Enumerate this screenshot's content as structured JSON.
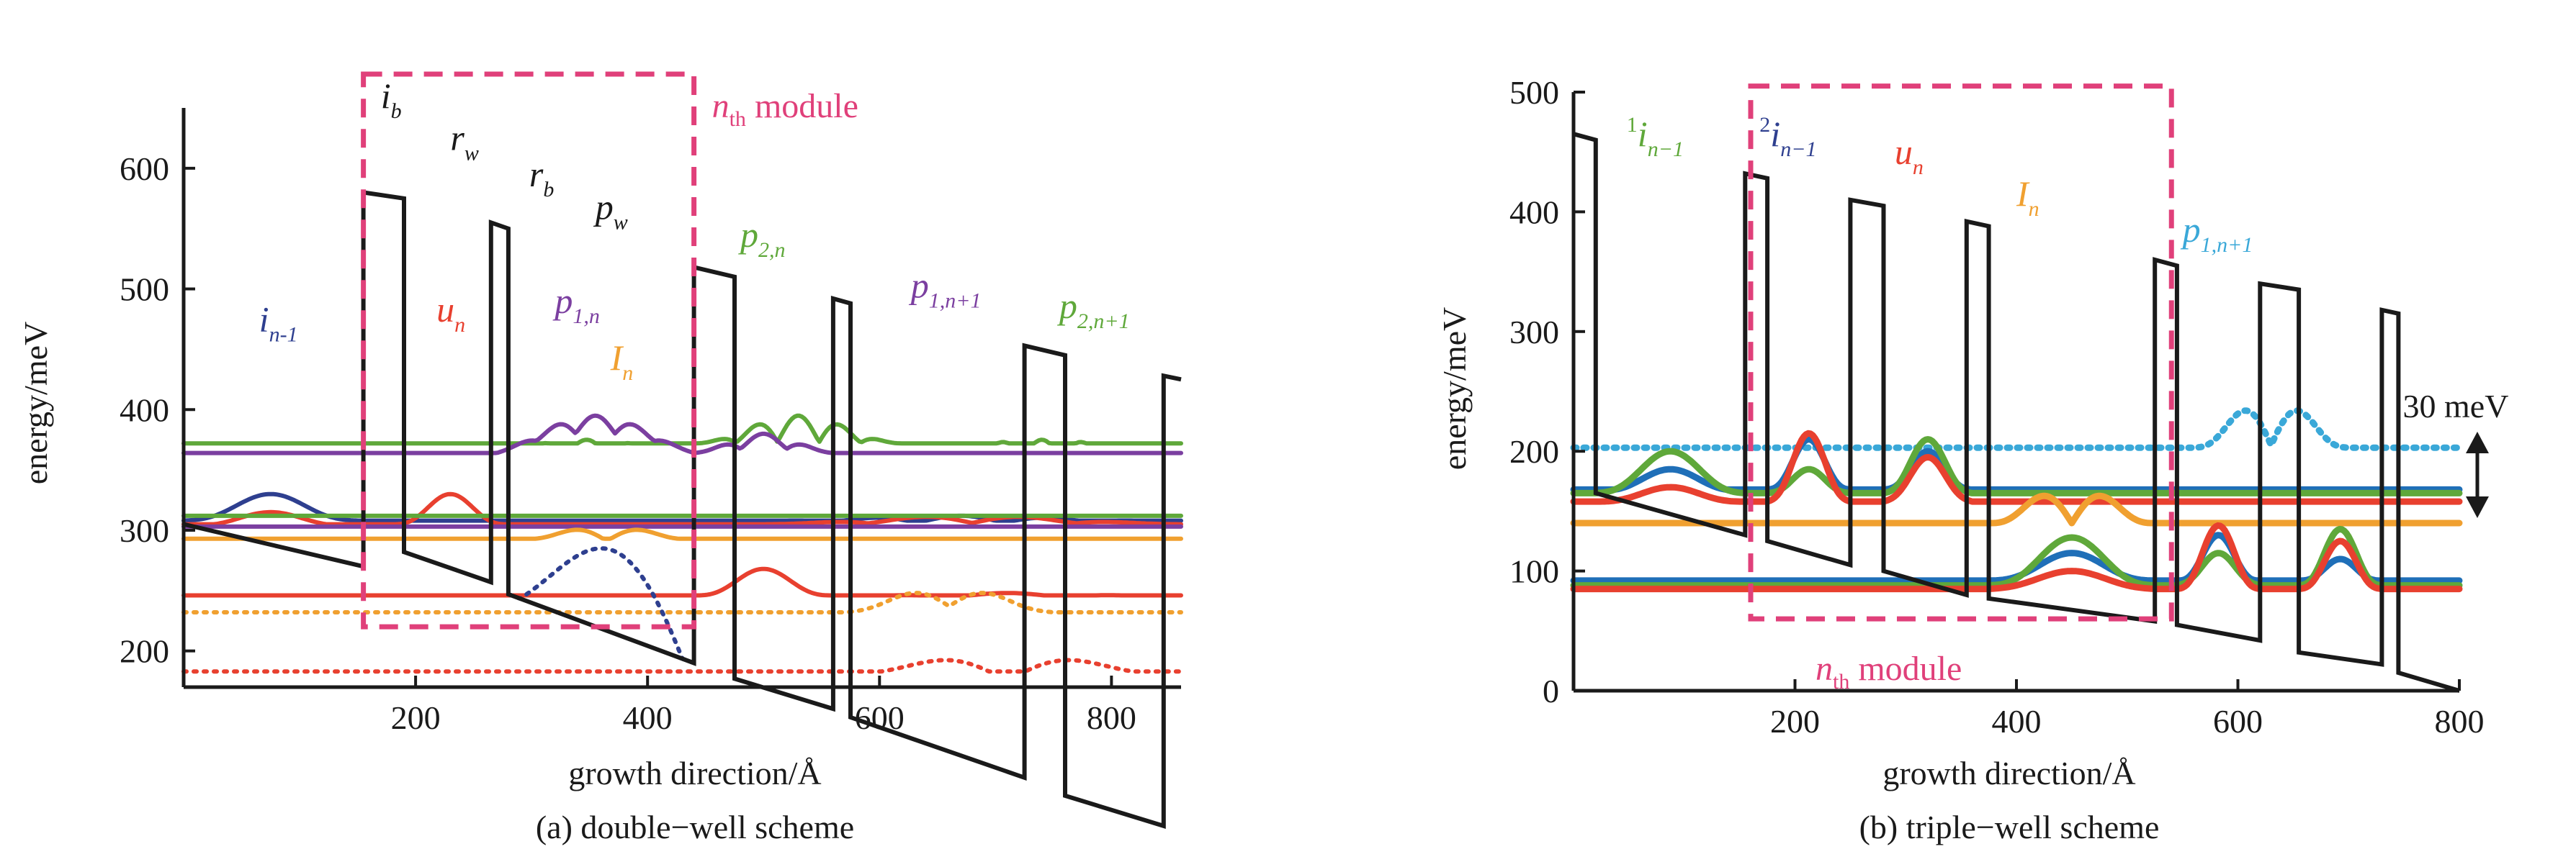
{
  "colors": {
    "black": "#1a1a1a",
    "red": "#e8402f",
    "green": "#5fa83a",
    "purple": "#7b3fa0",
    "orange": "#f0a030",
    "navy": "#2e3f8f",
    "blue": "#1f6fb8",
    "lightblue": "#3aa8d8",
    "magenta": "#e0407a"
  },
  "chart_data": [
    {
      "type": "line",
      "caption": "(a) double−well scheme",
      "xlabel": "growth direction/Å",
      "ylabel": "energy/meV",
      "xlim": [
        0,
        860
      ],
      "ylim": [
        170,
        650
      ],
      "xticks": [
        200,
        400,
        600,
        800
      ],
      "yticks": [
        200,
        300,
        400,
        500,
        600
      ],
      "module_label": {
        "prefix": "n",
        "sub": "th",
        "suffix": " module"
      },
      "module_box": {
        "x": [
          155,
          440
        ],
        "y": [
          220,
          678
        ]
      },
      "band_profile": [
        [
          0,
          305
        ],
        [
          155,
          270
        ],
        [
          155,
          580
        ],
        [
          190,
          575
        ],
        [
          190,
          282
        ],
        [
          265,
          257
        ],
        [
          265,
          555
        ],
        [
          280,
          550
        ],
        [
          280,
          247
        ],
        [
          440,
          190
        ],
        [
          440,
          518
        ],
        [
          475,
          510
        ],
        [
          475,
          177
        ],
        [
          560,
          152
        ],
        [
          560,
          492
        ],
        [
          575,
          488
        ],
        [
          575,
          145
        ],
        [
          725,
          95
        ],
        [
          725,
          453
        ],
        [
          760,
          445
        ],
        [
          760,
          80
        ],
        [
          845,
          55
        ],
        [
          845,
          428
        ],
        [
          860,
          425
        ]
      ],
      "layer_labels": [
        {
          "base": "i",
          "sub": "b",
          "x": 170,
          "y": 650,
          "color": "black"
        },
        {
          "base": "r",
          "sub": "w",
          "x": 230,
          "y": 615,
          "color": "black"
        },
        {
          "base": "r",
          "sub": "b",
          "x": 298,
          "y": 585,
          "color": "black"
        },
        {
          "base": "p",
          "sub": "w",
          "x": 355,
          "y": 558,
          "color": "black"
        }
      ],
      "state_labels": [
        {
          "base": "i",
          "sub": "n-1",
          "x": 65,
          "y": 465,
          "color": "navy"
        },
        {
          "base": "u",
          "sub": "n",
          "x": 218,
          "y": 473,
          "color": "red"
        },
        {
          "base": "p",
          "sub": "1,n",
          "x": 320,
          "y": 480,
          "color": "purple"
        },
        {
          "base": "I",
          "sub": "n",
          "x": 368,
          "y": 433,
          "color": "orange"
        },
        {
          "base": "p",
          "sub": "2,n",
          "x": 480,
          "y": 535,
          "color": "green"
        },
        {
          "base": "p",
          "sub": "1,n+1",
          "x": 627,
          "y": 493,
          "color": "purple"
        },
        {
          "base": "p",
          "sub": "2,n+1",
          "x": 755,
          "y": 476,
          "color": "green"
        }
      ],
      "series": [
        {
          "label": "green upper level",
          "color": "green",
          "style": "solid",
          "points": [
            [
              0,
              372
            ],
            [
              860,
              372
            ]
          ],
          "wiggles": [
            [
              255,
              440,
              375,
              15,
              5
            ],
            [
              440,
              620,
              395,
              22,
              5
            ],
            [
              620,
              860,
              375,
              18,
              7
            ]
          ]
        },
        {
          "label": "purple upper level",
          "color": "purple",
          "style": "solid",
          "points": [
            [
              0,
              364
            ],
            [
              860,
              364
            ]
          ],
          "wiggles": [
            [
              270,
              440,
              395,
              14,
              5
            ],
            [
              440,
              560,
              380,
              12,
              3
            ],
            [
              580,
              860,
              325,
              18,
              8
            ]
          ]
        },
        {
          "label": "navy ground",
          "color": "navy",
          "style": "solid",
          "points": [
            [
              0,
              308
            ],
            [
              860,
              308
            ]
          ],
          "wiggles": [
            [
              0,
              150,
              330,
              20,
              1
            ],
            [
              480,
              860,
              312,
              6,
              5
            ]
          ]
        },
        {
          "label": "red upper-lower",
          "color": "red",
          "style": "solid",
          "points": [
            [
              0,
              305
            ],
            [
              860,
              305
            ]
          ],
          "wiggles": [
            [
              0,
              150,
              315,
              14,
              1
            ],
            [
              180,
              280,
              330,
              25,
              1
            ],
            [
              500,
              860,
              312,
              6,
              4
            ]
          ]
        },
        {
          "label": "green middle",
          "color": "green",
          "style": "solid",
          "points": [
            [
              0,
              312
            ],
            [
              860,
              312
            ]
          ]
        },
        {
          "label": "purple middle",
          "color": "purple",
          "style": "solid",
          "points": [
            [
              0,
              303
            ],
            [
              860,
              303
            ]
          ]
        },
        {
          "label": "orange",
          "color": "orange",
          "style": "solid",
          "points": [
            [
              0,
              293
            ],
            [
              860,
              293
            ]
          ],
          "wiggles": [
            [
              290,
              440,
              305,
              14,
              2
            ]
          ]
        },
        {
          "label": "red lower",
          "color": "red",
          "style": "solid",
          "points": [
            [
              0,
              246
            ],
            [
              860,
              246
            ]
          ],
          "wiggles": [
            [
              440,
              560,
              268,
              22,
              1
            ],
            [
              560,
              860,
              248,
              4,
              3
            ]
          ]
        },
        {
          "label": "orange dotted",
          "color": "orange",
          "style": "dotted",
          "points": [
            [
              0,
              232
            ],
            [
              860,
              232
            ]
          ],
          "wiggles": [
            [
              570,
              750,
              255,
              18,
              2
            ]
          ]
        },
        {
          "label": "navy dotted",
          "color": "navy",
          "style": "dotted",
          "points": [
            [
              280,
              247
            ],
            [
              440,
              190
            ]
          ],
          "wiggles": [
            [
              290,
              430,
              285,
              0,
              1
            ]
          ]
        },
        {
          "label": "red dotted",
          "color": "red",
          "style": "dotted",
          "points": [
            [
              0,
              183
            ],
            [
              860,
              183
            ]
          ],
          "wiggles": [
            [
              560,
              860,
              200,
              25,
              2
            ]
          ]
        }
      ]
    },
    {
      "type": "line",
      "caption": "(b) triple−well scheme",
      "xlabel": "growth direction/Å",
      "ylabel": "energy/meV",
      "xlim": [
        0,
        800
      ],
      "ylim": [
        0,
        500
      ],
      "xticks": [
        200,
        400,
        600,
        800
      ],
      "yticks": [
        0,
        100,
        200,
        300,
        400,
        500
      ],
      "module_label": {
        "prefix": "n",
        "sub": "th",
        "suffix": " module"
      },
      "module_box": {
        "x": [
          160,
          540
        ],
        "y": [
          60,
          505
        ]
      },
      "annotation": "30 meV",
      "band_profile": [
        [
          0,
          465
        ],
        [
          20,
          460
        ],
        [
          20,
          165
        ],
        [
          155,
          130
        ],
        [
          155,
          432
        ],
        [
          175,
          428
        ],
        [
          175,
          125
        ],
        [
          250,
          105
        ],
        [
          250,
          410
        ],
        [
          280,
          405
        ],
        [
          280,
          100
        ],
        [
          355,
          80
        ],
        [
          355,
          392
        ],
        [
          375,
          388
        ],
        [
          375,
          77
        ],
        [
          525,
          58
        ],
        [
          525,
          360
        ],
        [
          545,
          355
        ],
        [
          545,
          55
        ],
        [
          620,
          42
        ],
        [
          620,
          340
        ],
        [
          655,
          335
        ],
        [
          655,
          32
        ],
        [
          730,
          22
        ],
        [
          730,
          318
        ],
        [
          745,
          315
        ],
        [
          745,
          15
        ],
        [
          800,
          0
        ]
      ],
      "state_labels": [
        {
          "pre": "1",
          "base": "i",
          "sub": "n−1",
          "x": 48,
          "y": 455,
          "color": "green"
        },
        {
          "pre": "2",
          "base": "i",
          "sub": "n−1",
          "x": 168,
          "y": 455,
          "color": "navy"
        },
        {
          "base": "u",
          "sub": "n",
          "x": 290,
          "y": 440,
          "color": "red"
        },
        {
          "base": "I",
          "sub": "n",
          "x": 400,
          "y": 405,
          "color": "orange"
        },
        {
          "base": "p",
          "sub": "1,n+1",
          "x": 550,
          "y": 375,
          "color": "lightblue"
        }
      ],
      "series": [
        {
          "label": "light blue dotted",
          "color": "lightblue",
          "style": "dotted",
          "points": [
            [
              0,
              203
            ],
            [
              800,
              203
            ]
          ],
          "wiggles": [
            [
              560,
              700,
              250,
              45,
              2
            ]
          ]
        },
        {
          "label": "blue upper",
          "color": "blue",
          "style": "solid",
          "points": [
            [
              0,
              168
            ],
            [
              800,
              168
            ]
          ],
          "wiggles": [
            [
              20,
              155,
              185,
              20,
              1
            ],
            [
              175,
              250,
              210,
              40,
              1
            ],
            [
              280,
              360,
              200,
              30,
              1
            ]
          ]
        },
        {
          "label": "green upper",
          "color": "green",
          "style": "solid",
          "points": [
            [
              0,
              165
            ],
            [
              800,
              165
            ]
          ],
          "wiggles": [
            [
              20,
              155,
              200,
              32,
              1
            ],
            [
              175,
              250,
              185,
              18,
              1
            ],
            [
              280,
              360,
              210,
              40,
              1
            ]
          ]
        },
        {
          "label": "red upper",
          "color": "red",
          "style": "solid",
          "points": [
            [
              0,
              158
            ],
            [
              800,
              158
            ]
          ],
          "wiggles": [
            [
              20,
              155,
              170,
              12,
              1
            ],
            [
              175,
              250,
              215,
              50,
              1
            ],
            [
              280,
              360,
              195,
              30,
              1
            ]
          ]
        },
        {
          "label": "orange",
          "color": "orange",
          "style": "solid",
          "points": [
            [
              0,
              140
            ],
            [
              800,
              140
            ]
          ],
          "wiggles": [
            [
              375,
              525,
              175,
              35,
              2
            ]
          ]
        },
        {
          "label": "blue lower",
          "color": "blue",
          "style": "solid",
          "points": [
            [
              0,
              92
            ],
            [
              800,
              92
            ]
          ],
          "wiggles": [
            [
              375,
              525,
              115,
              22,
              1
            ],
            [
              545,
              620,
              130,
              38,
              1
            ],
            [
              655,
              730,
              110,
              18,
              1
            ]
          ]
        },
        {
          "label": "green lower",
          "color": "green",
          "style": "solid",
          "points": [
            [
              0,
              88
            ],
            [
              800,
              88
            ]
          ],
          "wiggles": [
            [
              375,
              525,
              128,
              38,
              1
            ],
            [
              545,
              620,
              115,
              22,
              1
            ],
            [
              655,
              730,
              135,
              45,
              1
            ]
          ]
        },
        {
          "label": "red lower",
          "color": "red",
          "style": "solid",
          "points": [
            [
              0,
              85
            ],
            [
              800,
              85
            ]
          ],
          "wiggles": [
            [
              375,
              525,
              100,
              12,
              1
            ],
            [
              545,
              620,
              138,
              50,
              1
            ],
            [
              655,
              730,
              125,
              38,
              1
            ]
          ]
        }
      ]
    }
  ]
}
